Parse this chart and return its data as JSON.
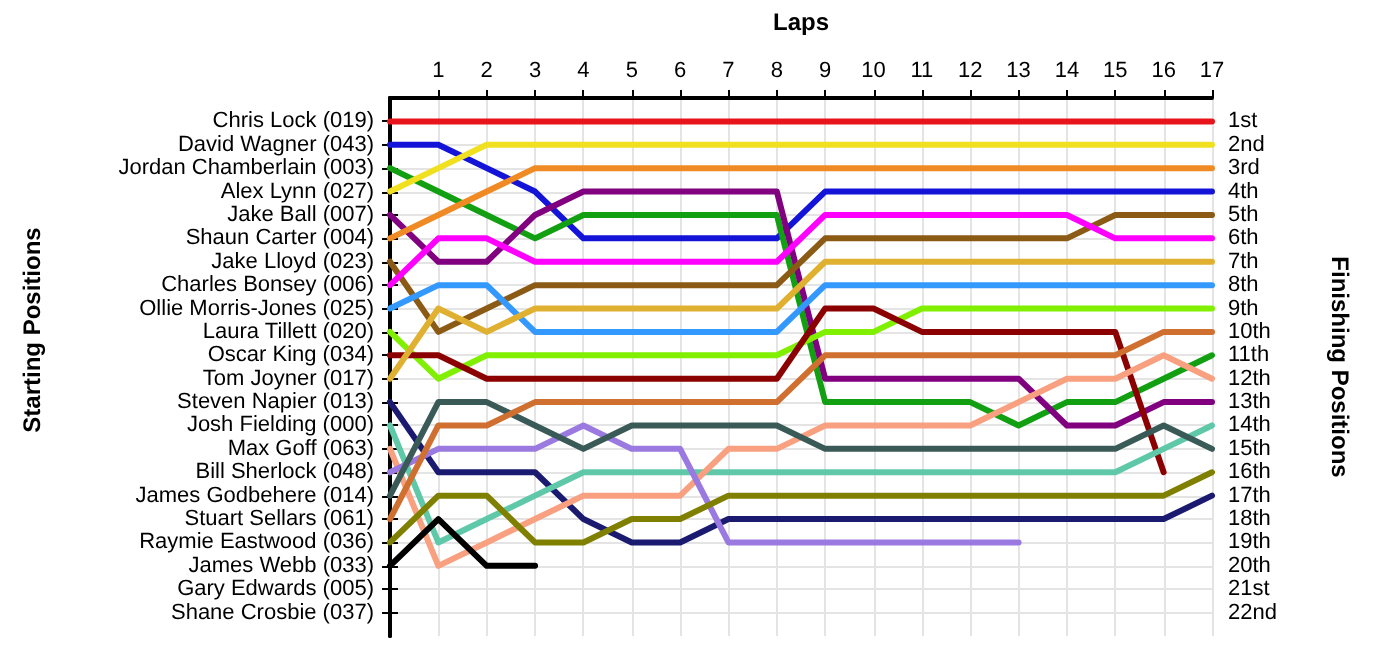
{
  "chart_data": {
    "type": "line",
    "xlabel": "Laps",
    "ylabel": "Finishing Positions",
    "annotations": [
      "Starting Positions"
    ],
    "x": [
      0,
      1,
      2,
      3,
      4,
      5,
      6,
      7,
      8,
      9,
      10,
      11,
      12,
      13,
      14,
      15,
      16,
      17
    ],
    "xlim": [
      0,
      17
    ],
    "xticks": [
      1,
      2,
      3,
      4,
      5,
      6,
      7,
      8,
      9,
      10,
      11,
      12,
      13,
      14,
      15,
      16,
      17
    ],
    "ylim": [
      23,
      0
    ],
    "y_categories": [
      "Chris Lock (019)",
      "David Wagner (043)",
      "Jordan Chamberlain (003)",
      "Alex Lynn (027)",
      "Jake Ball (007)",
      "Shaun Carter (004)",
      "Jake Lloyd (023)",
      "Charles Bonsey (006)",
      "Ollie Morris-Jones (025)",
      "Laura Tillett (020)",
      "Oscar King (034)",
      "Tom Joyner (017)",
      "Steven Napier (013)",
      "Josh Fielding (000)",
      "Max Goff (063)",
      "Bill Sherlock (048)",
      "James Godbehere (014)",
      "Stuart Sellars (061)",
      "Raymie Eastwood (036)",
      "James Webb (033)",
      "Gary Edwards (005)",
      "Shane Crosbie (037)"
    ],
    "yticks": [
      {
        "value": 1,
        "label": "1st"
      },
      {
        "value": 2,
        "label": "2nd"
      },
      {
        "value": 3,
        "label": "3rd"
      },
      {
        "value": 4,
        "label": "4th"
      },
      {
        "value": 5,
        "label": "5th"
      },
      {
        "value": 6,
        "label": "6th"
      },
      {
        "value": 7,
        "label": "7th"
      },
      {
        "value": 8,
        "label": "8th"
      },
      {
        "value": 9,
        "label": "9th"
      },
      {
        "value": 10,
        "label": "10th"
      },
      {
        "value": 11,
        "label": "11th"
      },
      {
        "value": 12,
        "label": "12th"
      },
      {
        "value": 13,
        "label": "13th"
      },
      {
        "value": 14,
        "label": "14th"
      },
      {
        "value": 15,
        "label": "15th"
      },
      {
        "value": 16,
        "label": "16th"
      },
      {
        "value": 17,
        "label": "17th"
      },
      {
        "value": 18,
        "label": "18th"
      },
      {
        "value": 19,
        "label": "19th"
      },
      {
        "value": 20,
        "label": "20th"
      },
      {
        "value": 21,
        "label": "21st"
      },
      {
        "value": 22,
        "label": "22nd"
      }
    ],
    "grid": true,
    "marker": "none",
    "line_style": "solid",
    "series": [
      {
        "color": "#e8141c",
        "values": [
          1,
          1,
          1,
          1,
          1,
          1,
          1,
          1,
          1,
          1,
          1,
          1,
          1,
          1,
          1,
          1,
          1,
          1
        ]
      },
      {
        "color": "#1414d8",
        "values": [
          2,
          2,
          3,
          4,
          6,
          6,
          6,
          6,
          6,
          4,
          4,
          4,
          4,
          4,
          4,
          4,
          4,
          4
        ]
      },
      {
        "color": "#12a012",
        "values": [
          3,
          4,
          5,
          6,
          5,
          5,
          5,
          5,
          5,
          13,
          13,
          13,
          13,
          14,
          13,
          13,
          12,
          11
        ]
      },
      {
        "color": "#f0e020",
        "values": [
          4,
          3,
          2,
          2,
          2,
          2,
          2,
          2,
          2,
          2,
          2,
          2,
          2,
          2,
          2,
          2,
          2,
          2
        ]
      },
      {
        "color": "#800080",
        "values": [
          5,
          7,
          7,
          5,
          4,
          4,
          4,
          4,
          4,
          12,
          12,
          12,
          12,
          12,
          14,
          14,
          13,
          13
        ]
      },
      {
        "color": "#f08a24",
        "values": [
          6,
          5,
          4,
          3,
          3,
          3,
          3,
          3,
          3,
          3,
          3,
          3,
          3,
          3,
          3,
          3,
          3,
          3
        ]
      },
      {
        "color": "#8b5a14",
        "values": [
          7,
          10,
          9,
          8,
          8,
          8,
          8,
          8,
          8,
          6,
          6,
          6,
          6,
          6,
          6,
          5,
          5,
          5
        ]
      },
      {
        "color": "#ff00ff",
        "values": [
          8,
          6,
          6,
          7,
          7,
          7,
          7,
          7,
          7,
          5,
          5,
          5,
          5,
          5,
          5,
          6,
          6,
          6
        ]
      },
      {
        "color": "#3399ff",
        "values": [
          9,
          8,
          8,
          10,
          10,
          10,
          10,
          10,
          10,
          8,
          8,
          8,
          8,
          8,
          8,
          8,
          8,
          8
        ]
      },
      {
        "color": "#80f000",
        "values": [
          10,
          12,
          11,
          11,
          11,
          11,
          11,
          11,
          11,
          10,
          10,
          9,
          9,
          9,
          9,
          9,
          9,
          9
        ]
      },
      {
        "color": "#8b0000",
        "values": [
          11,
          11,
          12,
          12,
          12,
          12,
          12,
          12,
          12,
          9,
          9,
          10,
          10,
          10,
          10,
          10,
          16,
          null
        ]
      },
      {
        "color": "#e0b030",
        "values": [
          12,
          9,
          10,
          9,
          9,
          9,
          9,
          9,
          9,
          7,
          7,
          7,
          7,
          7,
          7,
          7,
          7,
          7
        ]
      },
      {
        "color": "#1a1a70",
        "values": [
          13,
          16,
          16,
          16,
          18,
          19,
          19,
          18,
          18,
          18,
          18,
          18,
          18,
          18,
          18,
          18,
          18,
          17
        ]
      },
      {
        "color": "#5fc8a8",
        "values": [
          14,
          19,
          18,
          17,
          16,
          16,
          16,
          16,
          16,
          16,
          16,
          16,
          16,
          16,
          16,
          16,
          15,
          14
        ]
      },
      {
        "color": "#f8a080",
        "values": [
          15,
          20,
          19,
          18,
          17,
          17,
          17,
          15,
          15,
          14,
          14,
          14,
          14,
          13,
          12,
          12,
          11,
          12
        ]
      },
      {
        "color": "#9a7ae0",
        "values": [
          16,
          15,
          15,
          15,
          14,
          15,
          15,
          19,
          19,
          19,
          19,
          19,
          19,
          19,
          null,
          null,
          null,
          null
        ]
      },
      {
        "color": "#3a5a58",
        "values": [
          17,
          13,
          13,
          14,
          15,
          14,
          14,
          14,
          14,
          15,
          15,
          15,
          15,
          15,
          15,
          15,
          14,
          15
        ]
      },
      {
        "color": "#d07030",
        "values": [
          18,
          14,
          14,
          13,
          13,
          13,
          13,
          13,
          13,
          11,
          11,
          11,
          11,
          11,
          11,
          11,
          10,
          10
        ]
      },
      {
        "color": "#808000",
        "values": [
          19,
          17,
          17,
          19,
          19,
          18,
          18,
          17,
          17,
          17,
          17,
          17,
          17,
          17,
          17,
          17,
          17,
          16
        ]
      },
      {
        "color": "#000000",
        "values": [
          20,
          18,
          20,
          20,
          null,
          null,
          null,
          null,
          null,
          null,
          null,
          null,
          null,
          null,
          null,
          null,
          null,
          null
        ]
      }
    ]
  }
}
